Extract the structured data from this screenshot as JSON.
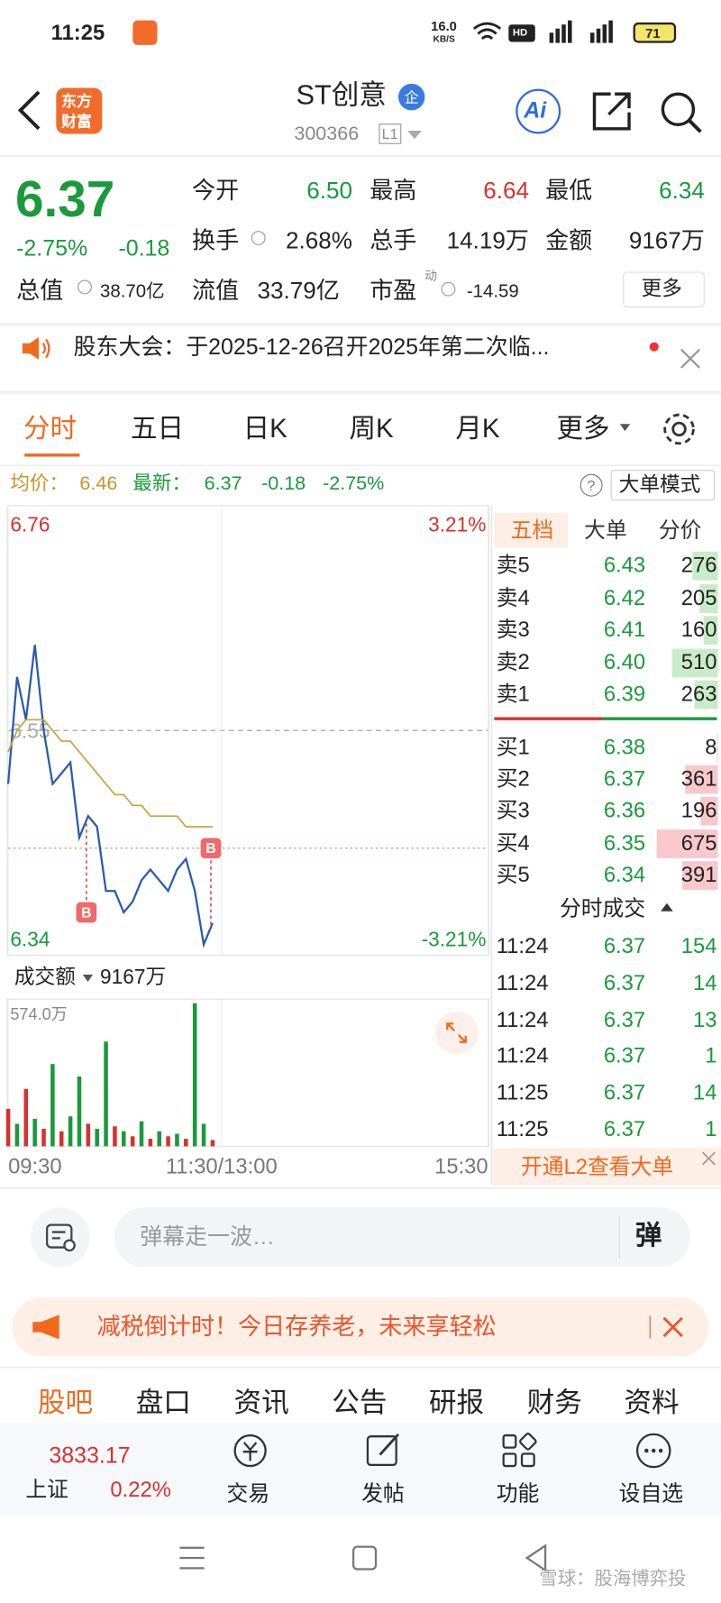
{
  "status_bar": {
    "time": "11:25",
    "net_speed": "16.0",
    "net_unit": "KB/S",
    "hd": "HD",
    "battery": "71"
  },
  "header": {
    "logo": [
      "东方",
      "财富"
    ],
    "title": "ST创意",
    "badge": "企",
    "code": "300366",
    "level": "L1",
    "ai": "Ai"
  },
  "quote": {
    "price": "6.37",
    "change_pct": "-2.75%",
    "change": "-0.18",
    "fields": [
      {
        "label": "今开",
        "value": "6.50"
      },
      {
        "label": "最高",
        "value": "6.64"
      },
      {
        "label": "最低",
        "value": "6.34"
      },
      {
        "label": "换手",
        "value": "2.68%"
      },
      {
        "label": "总手",
        "value": "14.19万"
      },
      {
        "label": "金额",
        "value": "9167万"
      },
      {
        "label": "总值",
        "value": "38.70亿"
      },
      {
        "label": "流值",
        "value": "33.79亿"
      },
      {
        "label": "市盈",
        "sup": "动",
        "value": "-14.59"
      }
    ],
    "more": "更多"
  },
  "notice": {
    "text": "股东大会：于2025-12-26召开2025年第二次临..."
  },
  "tabs": [
    "分时",
    "五日",
    "日K",
    "周K",
    "月K",
    "更多"
  ],
  "summary": {
    "avg_label": "均价：",
    "avg": "6.46",
    "last_label": "最新：",
    "last": "6.37",
    "change": "-0.18",
    "change_pct": "-2.75%",
    "help": "?",
    "mode": "大单模式"
  },
  "chart_data": [
    {
      "type": "line",
      "x": [
        0,
        5,
        10,
        15,
        20,
        25,
        30,
        35,
        40,
        45,
        50,
        55,
        60,
        65,
        70,
        75,
        80,
        85,
        90,
        95,
        100,
        105,
        110,
        115
      ],
      "xlim": [
        0,
        270
      ],
      "xticks": [
        {
          "value": 0,
          "label": "09:30"
        },
        {
          "value": 120,
          "label": "11:30/13:00"
        },
        {
          "value": 270,
          "label": "15:30"
        }
      ],
      "ylim": [
        6.34,
        6.76
      ],
      "yticks": [
        6.76,
        6.55,
        6.34
      ],
      "y2lim": [
        -3.21,
        3.21
      ],
      "y2ticks": [
        {
          "value": 3.21,
          "label": "3.21%"
        },
        {
          "value": -3.21,
          "label": "-3.21%"
        }
      ],
      "series": [
        {
          "color": "#2a5caa",
          "values": [
            6.5,
            6.6,
            6.56,
            6.63,
            6.55,
            6.5,
            6.51,
            6.52,
            6.45,
            6.47,
            6.46,
            6.4,
            6.4,
            6.38,
            6.39,
            6.41,
            6.42,
            6.41,
            6.4,
            6.42,
            6.43,
            6.4,
            6.35,
            6.37
          ]
        },
        {
          "color": "#c9a33a",
          "values": [
            6.53,
            6.55,
            6.56,
            6.56,
            6.56,
            6.55,
            6.54,
            6.54,
            6.53,
            6.52,
            6.51,
            6.5,
            6.49,
            6.49,
            6.48,
            6.48,
            6.47,
            6.47,
            6.47,
            6.47,
            6.46,
            6.46,
            6.46,
            6.46
          ]
        }
      ],
      "ref_line": 6.44,
      "markers": [
        {
          "label": "B",
          "x": 44,
          "price": 6.38
        },
        {
          "label": "B",
          "x": 114,
          "price": 6.44
        }
      ]
    },
    {
      "type": "bar",
      "title": "成交额",
      "total": "9167万",
      "x": [
        0,
        5,
        10,
        15,
        20,
        25,
        30,
        35,
        40,
        45,
        50,
        55,
        60,
        65,
        70,
        75,
        80,
        85,
        90,
        95,
        100,
        105,
        110,
        115
      ],
      "xlim": [
        0,
        270
      ],
      "ylim": [
        0,
        574
      ],
      "yticks": [
        {
          "value": 574,
          "label": "574.0万"
        }
      ],
      "values": [
        150,
        90,
        230,
        110,
        70,
        330,
        60,
        120,
        280,
        90,
        70,
        420,
        80,
        60,
        40,
        100,
        30,
        60,
        40,
        50,
        30,
        574,
        90,
        25
      ],
      "colors": [
        "#d9302c",
        "#1a9a3a",
        "#d9302c",
        "#1a9a3a",
        "#d9302c",
        "#1a9a3a",
        "#d9302c",
        "#1a9a3a",
        "#1a9a3a",
        "#d9302c",
        "#1a9a3a",
        "#1a9a3a",
        "#d9302c",
        "#1a9a3a",
        "#d9302c",
        "#1a9a3a",
        "#d9302c",
        "#1a9a3a",
        "#d9302c",
        "#1a9a3a",
        "#d9302c",
        "#1a9a3a",
        "#1a9a3a",
        "#d9302c"
      ]
    }
  ],
  "order_book": {
    "tabs": [
      "五档",
      "大单",
      "分价"
    ],
    "asks": [
      {
        "label": "卖5",
        "price": "6.43",
        "volume": 276
      },
      {
        "label": "卖4",
        "price": "6.42",
        "volume": 205
      },
      {
        "label": "卖3",
        "price": "6.41",
        "volume": 160
      },
      {
        "label": "卖2",
        "price": "6.40",
        "volume": 510
      },
      {
        "label": "卖1",
        "price": "6.39",
        "volume": 263
      }
    ],
    "bids": [
      {
        "label": "买1",
        "price": "6.38",
        "volume": 8
      },
      {
        "label": "买2",
        "price": "6.37",
        "volume": 361
      },
      {
        "label": "买3",
        "price": "6.36",
        "volume": 196
      },
      {
        "label": "买4",
        "price": "6.35",
        "volume": 675
      },
      {
        "label": "买5",
        "price": "6.34",
        "volume": 391
      }
    ],
    "trades_title": "分时成交",
    "trades": [
      {
        "time": "11:24",
        "price": "6.37",
        "volume": 154
      },
      {
        "time": "11:24",
        "price": "6.37",
        "volume": 14
      },
      {
        "time": "11:24",
        "price": "6.37",
        "volume": 13
      },
      {
        "time": "11:24",
        "price": "6.37",
        "volume": 1
      },
      {
        "time": "11:25",
        "price": "6.37",
        "volume": 14
      },
      {
        "time": "11:25",
        "price": "6.37",
        "volume": 1
      }
    ],
    "l2": "开通L2查看大单"
  },
  "danmaku": {
    "placeholder": "弹幕走一波…",
    "button": "弹"
  },
  "banner": {
    "text": "减税倒计时！今日存养老，未来享轻松"
  },
  "section_tabs": [
    "股吧",
    "盘口",
    "资讯",
    "公告",
    "研报",
    "财务",
    "资料"
  ],
  "bottom_nav": {
    "index_value": "3833.17",
    "index_name": "上证",
    "index_change": "0.22%",
    "items": [
      "交易",
      "发帖",
      "功能",
      "设自选"
    ]
  },
  "watermark": "雪球：股海博弈投"
}
